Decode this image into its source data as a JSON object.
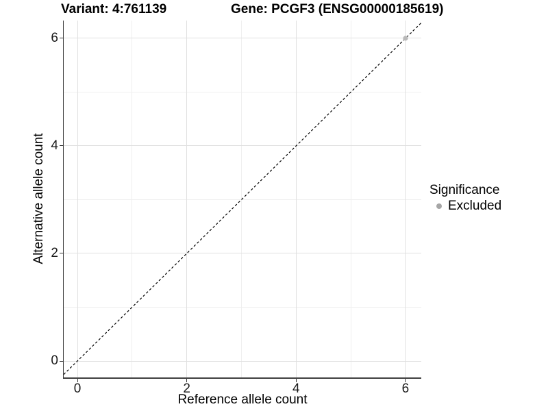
{
  "header": {
    "variant_title": "Variant: 4:761139",
    "gene_title": "Gene: PCGF3 (ENSG00000185619)"
  },
  "axes": {
    "x": {
      "label": "Reference allele count",
      "tick_values": [
        0,
        2,
        4,
        6
      ],
      "minor_values": [
        1,
        3,
        5
      ]
    },
    "y": {
      "label": "Alternative allele count",
      "tick_values": [
        0,
        2,
        4,
        6
      ],
      "minor_values": [
        1,
        3,
        5
      ]
    }
  },
  "legend": {
    "title": "Significance",
    "items": [
      {
        "label": "Excluded",
        "color": "#a6a6a6"
      }
    ]
  },
  "colors": {
    "background": "#ffffff",
    "grid_major": "#e0e0e0",
    "grid_minor": "#efefef",
    "axis_line": "#404040",
    "tick_mark": "#333333",
    "identity_line": "#000000",
    "point": "#b9b9b9"
  },
  "chart_data": {
    "type": "scatter",
    "title": "Variant: 4:761139 | Gene: PCGF3 (ENSG00000185619)",
    "xlabel": "Reference allele count",
    "ylabel": "Alternative allele count",
    "xlim": [
      -0.3,
      6.3
    ],
    "ylim": [
      -0.3,
      6.3
    ],
    "x_ticks": [
      0,
      2,
      4,
      6
    ],
    "y_ticks": [
      0,
      2,
      4,
      6
    ],
    "grid": "major at 0,2,4,6 and minor at 1,3,5 (both axes)",
    "legend_position": "right",
    "series": [
      {
        "name": "Excluded",
        "color": "#b9b9b9",
        "points": [
          [
            6,
            6
          ]
        ]
      }
    ],
    "reference_line": {
      "kind": "identity",
      "equation": "y = x",
      "style": "dashed",
      "color": "#000000"
    }
  }
}
